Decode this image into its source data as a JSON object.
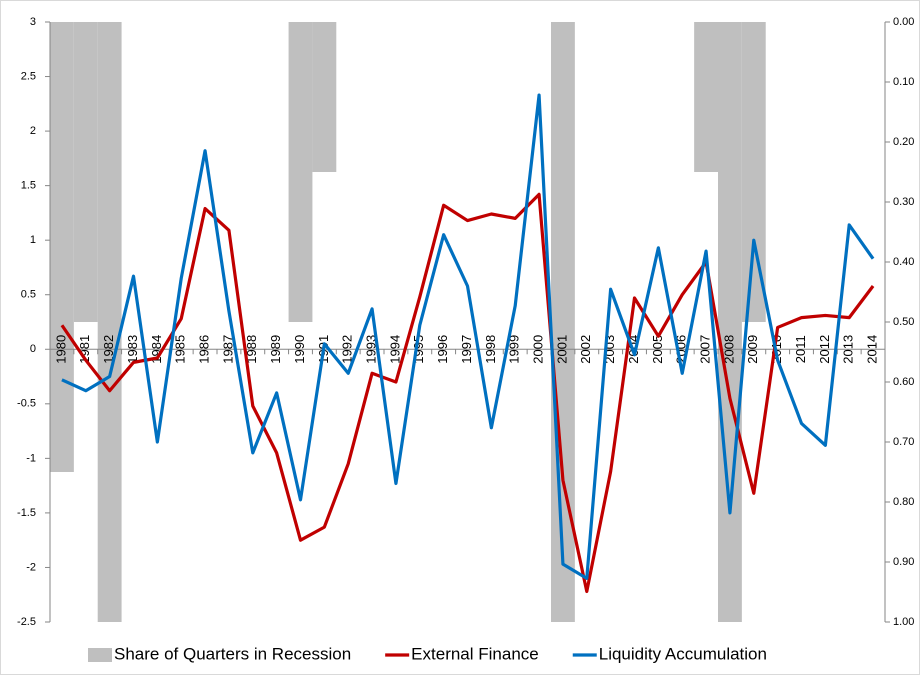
{
  "chart_data": {
    "type": "bar-line",
    "categories": [
      "1980",
      "1981",
      "1982",
      "1983",
      "1984",
      "1985",
      "1986",
      "1987",
      "1988",
      "1989",
      "1990",
      "1991",
      "1992",
      "1993",
      "1994",
      "1995",
      "1996",
      "1997",
      "1998",
      "1999",
      "2000",
      "2001",
      "2002",
      "2003",
      "2004",
      "2005",
      "2006",
      "2007",
      "2008",
      "2009",
      "2010",
      "2011",
      "2012",
      "2013",
      "2014"
    ],
    "series": [
      {
        "name": "Share of Quarters in Recession",
        "type": "bar",
        "axis": "y2",
        "color": "#bfbfbf",
        "values": [
          0.75,
          0.5,
          1.0,
          0,
          0,
          0,
          0,
          0,
          0,
          0,
          0.5,
          0.25,
          0,
          0,
          0,
          0,
          0,
          0,
          0,
          0,
          0,
          1.0,
          0,
          0,
          0,
          0,
          0,
          0.25,
          1.0,
          0.5,
          0,
          0,
          0,
          0,
          0
        ]
      },
      {
        "name": "External Finance",
        "type": "line",
        "color": "#c00000",
        "values": [
          0.22,
          -0.1,
          -0.38,
          -0.12,
          -0.08,
          0.28,
          1.29,
          1.09,
          -0.52,
          -0.95,
          -1.75,
          -1.63,
          -1.05,
          -0.22,
          -0.3,
          0.48,
          1.32,
          1.18,
          1.24,
          1.2,
          1.42,
          -1.2,
          -2.22,
          -1.12,
          0.47,
          0.12,
          0.5,
          0.8,
          -0.45,
          -1.32,
          0.2,
          0.29,
          0.31,
          0.29,
          0.58
        ]
      },
      {
        "name": "Liquidity Accumulation",
        "type": "line",
        "color": "#0070c0",
        "values": [
          -0.28,
          -0.38,
          -0.25,
          0.67,
          -0.85,
          0.65,
          1.82,
          0.35,
          -0.95,
          -0.4,
          -1.38,
          0.05,
          -0.22,
          0.37,
          -1.23,
          0.22,
          1.05,
          0.58,
          -0.72,
          0.4,
          2.33,
          -1.97,
          -2.1,
          0.55,
          -0.05,
          0.93,
          -0.22,
          0.9,
          -1.5,
          1.0,
          -0.1,
          -0.68,
          -0.88,
          1.14,
          0.83
        ]
      }
    ],
    "ylim": [
      -2.5,
      3
    ],
    "yticks": [
      -2.5,
      -2,
      -1.5,
      -1,
      -0.5,
      0,
      0.5,
      1,
      1.5,
      2,
      2.5,
      3
    ],
    "y2lim": [
      0,
      1
    ],
    "y2_inverted": true,
    "y2ticks": [
      {
        "value": 0,
        "label": "0.00"
      },
      {
        "value": 0.1,
        "label": "0.10"
      },
      {
        "value": 0.2,
        "label": "0.20"
      },
      {
        "value": 0.3,
        "label": "0.30"
      },
      {
        "value": 0.4,
        "label": "0.40"
      },
      {
        "value": 0.5,
        "label": "0.50"
      },
      {
        "value": 0.6,
        "label": "0.60"
      },
      {
        "value": 0.7,
        "label": "0.70"
      },
      {
        "value": 0.8,
        "label": "0.80"
      },
      {
        "value": 0.9,
        "label": "0.90"
      },
      {
        "value": 1,
        "label": "1.00"
      }
    ],
    "legend": "bottom"
  }
}
